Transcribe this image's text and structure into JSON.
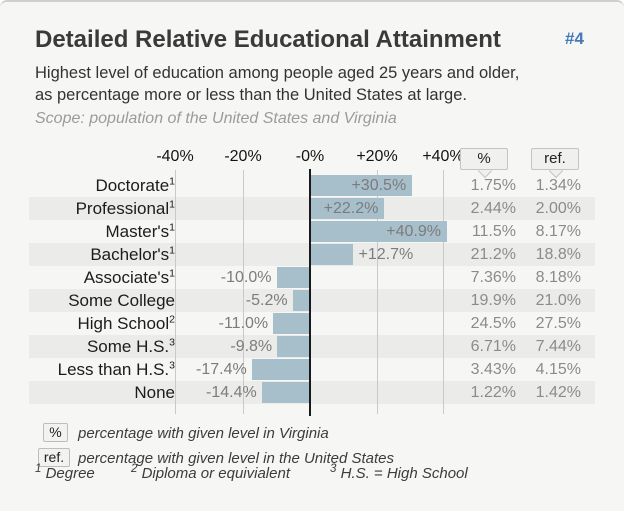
{
  "page": {
    "background": "#f6f6f4",
    "accent_blue": "#4579b8",
    "bar_color": "#a7becb"
  },
  "header": {
    "title": "Detailed Relative Educational Attainment",
    "tag": "#4",
    "subtitle_line1": "Highest level of education among people aged 25 years and older,",
    "subtitle_line2": "as percentage more or less than the United States at large.",
    "scope": "Scope: population of the United States and Virginia"
  },
  "chart_data": {
    "type": "bar",
    "orientation": "horizontal",
    "title": "Detailed Relative Educational Attainment",
    "xlabel": "percentage more or less than the United States",
    "axis": {
      "ticks": [
        "-40%",
        "-20%",
        "-0%",
        "+20%",
        "+40%"
      ],
      "tick_values": [
        -40,
        -20,
        0,
        20,
        40
      ],
      "grid": true,
      "zero_line": true
    },
    "value_columns": {
      "pct_header": "%",
      "ref_header": "ref."
    },
    "rows": [
      {
        "label": "Doctorate",
        "sup": "1",
        "delta": 30.5,
        "delta_label": "+30.5%",
        "pct": "1.75%",
        "ref": "1.34%"
      },
      {
        "label": "Professional",
        "sup": "1",
        "delta": 22.2,
        "delta_label": "+22.2%",
        "pct": "2.44%",
        "ref": "2.00%"
      },
      {
        "label": "Master's",
        "sup": "1",
        "delta": 40.9,
        "delta_label": "+40.9%",
        "pct": "11.5%",
        "ref": "8.17%"
      },
      {
        "label": "Bachelor's",
        "sup": "1",
        "delta": 12.7,
        "delta_label": "+12.7%",
        "pct": "21.2%",
        "ref": "18.8%"
      },
      {
        "label": "Associate's",
        "sup": "1",
        "delta": -10.0,
        "delta_label": "-10.0%",
        "pct": "7.36%",
        "ref": "8.18%"
      },
      {
        "label": "Some College",
        "sup": "",
        "delta": -5.2,
        "delta_label": "-5.2%",
        "pct": "19.9%",
        "ref": "21.0%"
      },
      {
        "label": "High School",
        "sup": "2",
        "delta": -11.0,
        "delta_label": "-11.0%",
        "pct": "24.5%",
        "ref": "27.5%"
      },
      {
        "label": "Some H.S.",
        "sup": "3",
        "delta": -9.8,
        "delta_label": "-9.8%",
        "pct": "6.71%",
        "ref": "7.44%"
      },
      {
        "label": "Less than H.S.",
        "sup": "3",
        "delta": -17.4,
        "delta_label": "-17.4%",
        "pct": "3.43%",
        "ref": "4.15%"
      },
      {
        "label": "None",
        "sup": "",
        "delta": -14.4,
        "delta_label": "-14.4%",
        "pct": "1.22%",
        "ref": "1.42%"
      }
    ],
    "legend": [
      {
        "key": "%",
        "text": "percentage with given level in Virginia"
      },
      {
        "key": "ref.",
        "text": "percentage with given level in the United States"
      }
    ],
    "footnotes": [
      {
        "sup": "1",
        "text": "Degree"
      },
      {
        "sup": "2",
        "text": "Diploma or equivialent"
      },
      {
        "sup": "3",
        "text": "H.S. = High School"
      }
    ]
  }
}
